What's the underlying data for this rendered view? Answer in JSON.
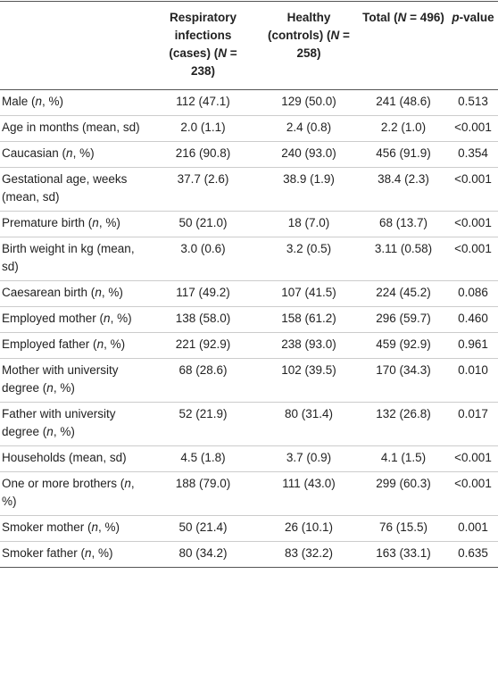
{
  "table": {
    "headers": [
      [
        {
          "text": "Respiratory infections (cases) ("
        },
        {
          "text": "N",
          "italic": true
        },
        {
          "text": " = 238)"
        }
      ],
      [
        {
          "text": "Healthy (controls) ("
        },
        {
          "text": "N",
          "italic": true
        },
        {
          "text": " = 258)"
        }
      ],
      [
        {
          "text": "Total ("
        },
        {
          "text": "N",
          "italic": true
        },
        {
          "text": " = 496)"
        }
      ],
      [
        {
          "text": "p",
          "italic": true
        },
        {
          "text": "-value"
        }
      ]
    ],
    "rows": [
      {
        "label": [
          {
            "text": "Male ("
          },
          {
            "text": "n",
            "italic": true
          },
          {
            "text": ", %)"
          }
        ],
        "cells": [
          "112 (47.1)",
          "129 (50.0)",
          "241 (48.6)",
          "0.513"
        ]
      },
      {
        "label": [
          {
            "text": "Age in months (mean, sd)"
          }
        ],
        "cells": [
          "2.0 (1.1)",
          "2.4 (0.8)",
          "2.2 (1.0)",
          "<0.001"
        ]
      },
      {
        "label": [
          {
            "text": "Caucasian ("
          },
          {
            "text": "n",
            "italic": true
          },
          {
            "text": ", %)"
          }
        ],
        "cells": [
          "216 (90.8)",
          "240 (93.0)",
          "456 (91.9)",
          "0.354"
        ]
      },
      {
        "label": [
          {
            "text": "Gestational age, weeks (mean, sd)"
          }
        ],
        "cells": [
          "37.7 (2.6)",
          "38.9 (1.9)",
          "38.4 (2.3)",
          "<0.001"
        ]
      },
      {
        "label": [
          {
            "text": "Premature birth ("
          },
          {
            "text": "n",
            "italic": true
          },
          {
            "text": ", %)"
          }
        ],
        "cells": [
          "50 (21.0)",
          "18 (7.0)",
          "68 (13.7)",
          "<0.001"
        ]
      },
      {
        "label": [
          {
            "text": "Birth weight in kg (mean, sd)"
          }
        ],
        "cells": [
          "3.0 (0.6)",
          "3.2 (0.5)",
          "3.11 (0.58)",
          "<0.001"
        ]
      },
      {
        "label": [
          {
            "text": "Caesarean birth ("
          },
          {
            "text": "n",
            "italic": true
          },
          {
            "text": ", %)"
          }
        ],
        "cells": [
          "117 (49.2)",
          "107 (41.5)",
          "224 (45.2)",
          "0.086"
        ]
      },
      {
        "label": [
          {
            "text": "Employed mother ("
          },
          {
            "text": "n",
            "italic": true
          },
          {
            "text": ", %)"
          }
        ],
        "cells": [
          "138 (58.0)",
          "158 (61.2)",
          "296 (59.7)",
          "0.460"
        ]
      },
      {
        "label": [
          {
            "text": "Employed father ("
          },
          {
            "text": "n",
            "italic": true
          },
          {
            "text": ", %)"
          }
        ],
        "cells": [
          "221 (92.9)",
          "238 (93.0)",
          "459 (92.9)",
          "0.961"
        ]
      },
      {
        "label": [
          {
            "text": "Mother with university degree ("
          },
          {
            "text": "n",
            "italic": true
          },
          {
            "text": ", %)"
          }
        ],
        "cells": [
          "68 (28.6)",
          "102 (39.5)",
          "170 (34.3)",
          "0.010"
        ]
      },
      {
        "label": [
          {
            "text": "Father with university degree ("
          },
          {
            "text": "n",
            "italic": true
          },
          {
            "text": ", %)"
          }
        ],
        "cells": [
          "52 (21.9)",
          "80 (31.4)",
          "132 (26.8)",
          "0.017"
        ]
      },
      {
        "label": [
          {
            "text": "Households (mean, sd)"
          }
        ],
        "cells": [
          "4.5 (1.8)",
          "3.7 (0.9)",
          "4.1 (1.5)",
          "<0.001"
        ]
      },
      {
        "label": [
          {
            "text": "One or more brothers ("
          },
          {
            "text": "n",
            "italic": true
          },
          {
            "text": ", %)"
          }
        ],
        "cells": [
          "188 (79.0)",
          "111 (43.0)",
          "299 (60.3)",
          "<0.001"
        ]
      },
      {
        "label": [
          {
            "text": "Smoker mother ("
          },
          {
            "text": "n",
            "italic": true
          },
          {
            "text": ", %)"
          }
        ],
        "cells": [
          "50 (21.4)",
          "26 (10.1)",
          "76 (15.5)",
          "0.001"
        ]
      },
      {
        "label": [
          {
            "text": "Smoker father ("
          },
          {
            "text": "n",
            "italic": true
          },
          {
            "text": ", %)"
          }
        ],
        "cells": [
          "80 (34.2)",
          "83 (32.2)",
          "163 (33.1)",
          "0.635"
        ]
      }
    ]
  }
}
